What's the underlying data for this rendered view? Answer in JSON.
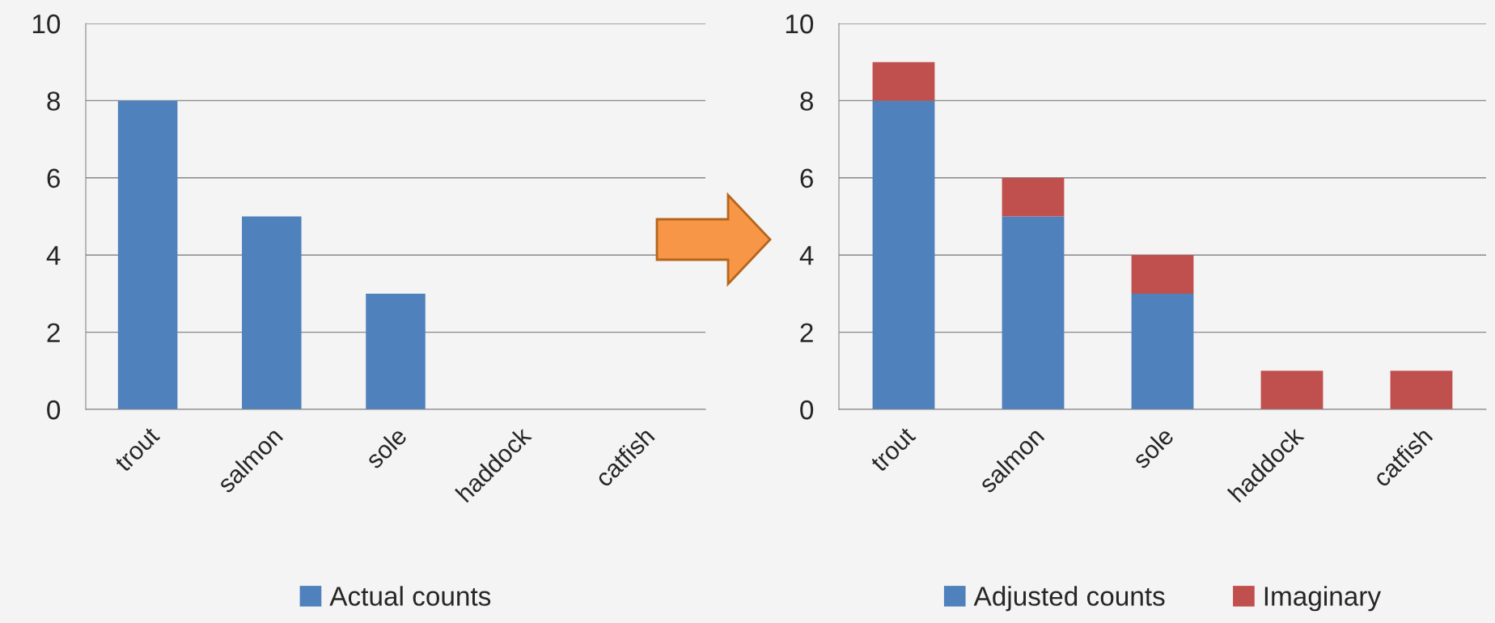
{
  "chart_data": [
    {
      "type": "bar",
      "categories": [
        "trout",
        "salmon",
        "sole",
        "haddock",
        "catfish"
      ],
      "series": [
        {
          "name": "Actual counts",
          "color": "#4f81bd",
          "values": [
            8,
            5,
            3,
            0,
            0
          ]
        }
      ],
      "ylim": [
        0,
        10
      ],
      "yticks": [
        0,
        2,
        4,
        6,
        8,
        10
      ],
      "grid": "y",
      "legend": "bottom"
    },
    {
      "type": "bar",
      "stacked": true,
      "categories": [
        "trout",
        "salmon",
        "sole",
        "haddock",
        "catfish"
      ],
      "series": [
        {
          "name": "Adjusted counts",
          "color": "#4f81bd",
          "values": [
            8,
            5,
            3,
            0,
            0
          ]
        },
        {
          "name": "Imaginary",
          "color": "#c0504d",
          "values": [
            1,
            1,
            1,
            1,
            1
          ]
        }
      ],
      "ylim": [
        0,
        10
      ],
      "yticks": [
        0,
        2,
        4,
        6,
        8,
        10
      ],
      "grid": "y",
      "legend": "bottom"
    }
  ]
}
